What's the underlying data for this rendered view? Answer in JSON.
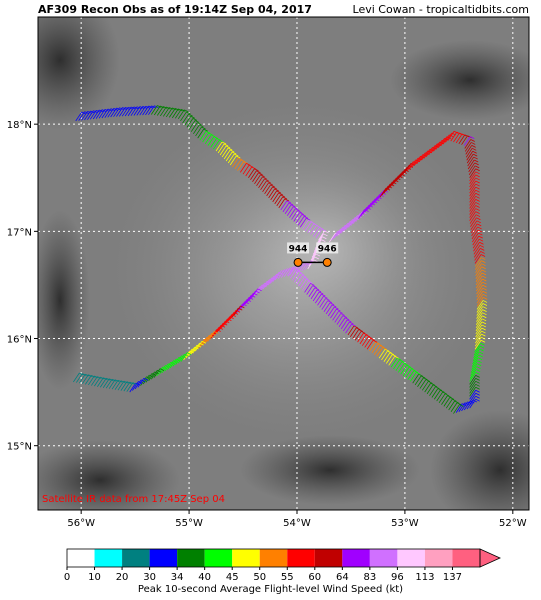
{
  "header": {
    "title": "AF309 Recon Obs as of 19:14Z Sep 04, 2017",
    "credit": "Levi Cowan - tropicaltidbits.com"
  },
  "map": {
    "lon_range": [
      -56.4,
      -51.85
    ],
    "lat_range": [
      14.4,
      19.0
    ],
    "lon_ticks": [
      -56,
      -55,
      -54,
      -53,
      -52
    ],
    "lon_labels": [
      "56°W",
      "55°W",
      "54°W",
      "53°W",
      "52°W"
    ],
    "lat_ticks": [
      15,
      16,
      17,
      18
    ],
    "lat_labels": [
      "15°N",
      "16°N",
      "17°N",
      "18°N"
    ],
    "satellite_note": "Satellite IR data from 17:45Z Sep 04",
    "pressure_obs": [
      {
        "label": "944",
        "lon": -53.99,
        "lat": 16.71
      },
      {
        "label": "946",
        "lon": -53.72,
        "lat": 16.71
      }
    ],
    "flight_track": [
      [
        -56.05,
        18.03,
        30
      ],
      [
        -55.7,
        18.07,
        30
      ],
      [
        -55.35,
        18.09,
        34
      ],
      [
        -55.1,
        18.05,
        34
      ],
      [
        -54.9,
        17.85,
        40
      ],
      [
        -54.75,
        17.75,
        45
      ],
      [
        -54.6,
        17.6,
        50
      ],
      [
        -54.45,
        17.5,
        60
      ],
      [
        -54.3,
        17.35,
        60
      ],
      [
        -54.15,
        17.2,
        64
      ],
      [
        -53.95,
        17.02,
        83
      ],
      [
        -53.8,
        16.92,
        96
      ],
      [
        -53.9,
        16.65,
        96
      ],
      [
        -54.2,
        16.55,
        83
      ],
      [
        -54.4,
        16.4,
        83
      ],
      [
        -54.6,
        16.2,
        60
      ],
      [
        -54.8,
        16.0,
        55
      ],
      [
        -55.05,
        15.8,
        45
      ],
      [
        -55.3,
        15.65,
        40
      ],
      [
        -55.55,
        15.5,
        30
      ],
      [
        -55.85,
        15.55,
        20
      ],
      [
        -56.1,
        15.6,
        20
      ],
      [
        -53.7,
        16.9,
        96
      ],
      [
        -53.45,
        17.1,
        83
      ],
      [
        -53.25,
        17.3,
        64
      ],
      [
        -53.0,
        17.55,
        60
      ],
      [
        -52.8,
        17.7,
        55
      ],
      [
        -52.6,
        17.85,
        55
      ],
      [
        -52.45,
        17.8,
        64
      ],
      [
        -52.4,
        17.5,
        60
      ],
      [
        -52.4,
        17.1,
        55
      ],
      [
        -52.35,
        16.7,
        55
      ],
      [
        -52.33,
        16.3,
        50
      ],
      [
        -52.35,
        15.9,
        45
      ],
      [
        -52.4,
        15.6,
        40
      ],
      [
        -52.4,
        15.35,
        30
      ],
      [
        -52.55,
        15.3,
        34
      ],
      [
        -52.75,
        15.45,
        34
      ],
      [
        -52.95,
        15.6,
        40
      ],
      [
        -53.15,
        15.75,
        45
      ],
      [
        -53.35,
        15.9,
        55
      ],
      [
        -53.55,
        16.05,
        64
      ],
      [
        -53.75,
        16.25,
        64
      ],
      [
        -53.95,
        16.45,
        83
      ],
      [
        -54.1,
        16.6,
        96
      ]
    ]
  },
  "colorbar": {
    "label": "Peak 10-second Average Flight-level Wind Speed (kt)",
    "ticks": [
      "0",
      "10",
      "20",
      "30",
      "34",
      "40",
      "45",
      "50",
      "55",
      "60",
      "64",
      "83",
      "96",
      "113",
      "137"
    ],
    "colors": [
      "#ffffff",
      "#00ffff",
      "#008080",
      "#0000ff",
      "#008000",
      "#00ff00",
      "#ffff00",
      "#ff8000",
      "#ff0000",
      "#c00000",
      "#a000ff",
      "#d070ff",
      "#ffc8ff",
      "#ffa0c0",
      "#ff6080"
    ]
  }
}
